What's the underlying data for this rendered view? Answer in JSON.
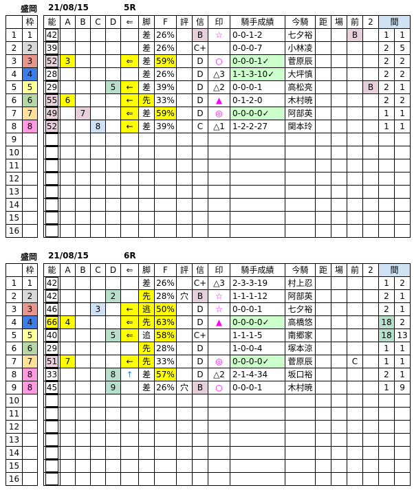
{
  "headers": [
    "",
    "枠",
    "能",
    "A",
    "B",
    "C",
    "D",
    "⇐",
    "脚",
    "F",
    "評",
    "信",
    "印",
    "騎手成績",
    "今騎",
    "距",
    "場",
    "前",
    "2",
    "間"
  ],
  "races": [
    {
      "venue": "盛岡",
      "date": "21/08/15",
      "race": "5R",
      "rows": [
        [
          [
            "1"
          ],
          [
            "1",
            "#ffffff"
          ],
          [
            "42"
          ],
          [
            ""
          ],
          [
            ""
          ],
          [
            ""
          ],
          [
            ""
          ],
          [
            ""
          ],
          [
            "差"
          ],
          [
            "26%"
          ],
          [
            ""
          ],
          [
            "B",
            "#e6d0dc"
          ],
          [
            "☆",
            "",
            "#ff00ff"
          ],
          [
            "0-0-1-2"
          ],
          [
            "七夕裕"
          ],
          [
            ""
          ],
          [
            ""
          ],
          [
            "B",
            "#e6d0dc"
          ],
          [
            ""
          ],
          [
            "1"
          ],
          [
            "1"
          ]
        ],
        [
          [
            "2"
          ],
          [
            "2",
            "#d9d9d9"
          ],
          [
            "39"
          ],
          [
            ""
          ],
          [
            ""
          ],
          [
            ""
          ],
          [
            ""
          ],
          [
            ""
          ],
          [
            "差"
          ],
          [
            "26%"
          ],
          [
            ""
          ],
          [
            "C+"
          ],
          [
            ""
          ],
          [
            "0-0-0-7"
          ],
          [
            "小林凌"
          ],
          [
            ""
          ],
          [
            ""
          ],
          [
            ""
          ],
          [
            ""
          ],
          [
            "2"
          ],
          [
            "5"
          ]
        ],
        [
          [
            "3"
          ],
          [
            "3",
            "#e6958f"
          ],
          [
            "52",
            "#e6d0dc"
          ],
          [
            "3",
            "#ffff00"
          ],
          [
            ""
          ],
          [
            ""
          ],
          [
            ""
          ],
          [
            "⇐",
            "#ffff00"
          ],
          [
            "差"
          ],
          [
            "59%",
            "#ffff00"
          ],
          [
            ""
          ],
          [
            "D"
          ],
          [
            "○",
            "",
            "#ff00ff"
          ],
          [
            "0-0-0-1✓",
            "#ccffcc"
          ],
          [
            "菅原辰"
          ],
          [
            ""
          ],
          [
            ""
          ],
          [
            ""
          ],
          [
            ""
          ],
          [
            "2"
          ],
          [
            "2"
          ]
        ],
        [
          [
            "4"
          ],
          [
            "4",
            "#3c7de6"
          ],
          [
            "28"
          ],
          [
            ""
          ],
          [
            ""
          ],
          [
            ""
          ],
          [
            ""
          ],
          [
            ""
          ],
          [
            "差"
          ],
          [
            "26%"
          ],
          [
            ""
          ],
          [
            "D"
          ],
          [
            "△3"
          ],
          [
            "1-1-3-10✓",
            "#ccffcc"
          ],
          [
            "大坪慎"
          ],
          [
            ""
          ],
          [
            ""
          ],
          [
            ""
          ],
          [
            ""
          ],
          [
            "2"
          ],
          [
            "2"
          ]
        ],
        [
          [
            "5"
          ],
          [
            "5",
            "#ffff99"
          ],
          [
            "29"
          ],
          [
            ""
          ],
          [
            ""
          ],
          [
            ""
          ],
          [
            "5",
            "#b7dfcc"
          ],
          [
            "←",
            "#ffff00"
          ],
          [
            "差"
          ],
          [
            "39%"
          ],
          [
            ""
          ],
          [
            "D"
          ],
          [
            "△2"
          ],
          [
            "0-0-0-1"
          ],
          [
            "高松亮"
          ],
          [
            ""
          ],
          [
            ""
          ],
          [
            ""
          ],
          [
            "B",
            "#e6d0dc"
          ],
          [
            "2"
          ],
          [
            "1"
          ]
        ],
        [
          [
            "6"
          ],
          [
            "6",
            "#b6d7a8"
          ],
          [
            "55",
            "#e6d0dc"
          ],
          [
            "6",
            "#ffff00"
          ],
          [
            ""
          ],
          [
            ""
          ],
          [
            ""
          ],
          [
            "←",
            "#ffff00"
          ],
          [
            "先",
            "#ffff00"
          ],
          [
            "33%"
          ],
          [
            ""
          ],
          [
            "D"
          ],
          [
            "▲",
            "",
            "#ff00ff"
          ],
          [
            "0-1-2-0"
          ],
          [
            "木村暁"
          ],
          [
            ""
          ],
          [
            ""
          ],
          [
            ""
          ],
          [
            ""
          ],
          [
            "2"
          ],
          [
            "2"
          ]
        ],
        [
          [
            "7"
          ],
          [
            "7",
            "#ffe199"
          ],
          [
            "49",
            "#e6d0dc"
          ],
          [
            ""
          ],
          [
            "7",
            "#e6d0dc"
          ],
          [
            ""
          ],
          [
            ""
          ],
          [
            "⇐",
            "#ffff00"
          ],
          [
            "差"
          ],
          [
            "59%",
            "#ffff00"
          ],
          [
            ""
          ],
          [
            "D"
          ],
          [
            "◎",
            "",
            "#ff00ff"
          ],
          [
            "0-0-0-0✓",
            "#ccffcc"
          ],
          [
            "阿部英"
          ],
          [
            ""
          ],
          [
            ""
          ],
          [
            ""
          ],
          [
            ""
          ],
          [
            "1"
          ],
          [
            "1"
          ]
        ],
        [
          [
            "8"
          ],
          [
            "8",
            "#ff99e0"
          ],
          [
            "52",
            "#e6d0dc"
          ],
          [
            ""
          ],
          [
            ""
          ],
          [
            "8",
            "#cfe2f3"
          ],
          [
            ""
          ],
          [
            "←",
            "#ffff00"
          ],
          [
            "差"
          ],
          [
            "39%"
          ],
          [
            ""
          ],
          [
            "C"
          ],
          [
            "△1"
          ],
          [
            "1-2-2-27"
          ],
          [
            "関本玲"
          ],
          [
            ""
          ],
          [
            ""
          ],
          [
            ""
          ],
          [
            ""
          ],
          [
            "1"
          ],
          [
            "1"
          ]
        ],
        [
          [
            "9"
          ]
        ],
        [
          [
            "10"
          ]
        ],
        [
          [
            "11"
          ]
        ],
        [
          [
            "12"
          ]
        ],
        [
          [
            "13"
          ]
        ],
        [
          [
            "14"
          ]
        ],
        [
          [
            "15"
          ]
        ],
        [
          [
            "16"
          ]
        ]
      ]
    },
    {
      "venue": "盛岡",
      "date": "21/08/15",
      "race": "6R",
      "rows": [
        [
          [
            "1"
          ],
          [
            "1",
            "#ffffff"
          ],
          [
            "42"
          ],
          [
            ""
          ],
          [
            ""
          ],
          [
            ""
          ],
          [
            ""
          ],
          [
            ""
          ],
          [
            "差"
          ],
          [
            "26%"
          ],
          [
            ""
          ],
          [
            "C+"
          ],
          [
            "△3"
          ],
          [
            "2-3-3-19"
          ],
          [
            "村上忍"
          ],
          [
            ""
          ],
          [
            ""
          ],
          [
            ""
          ],
          [
            ""
          ],
          [
            "1"
          ],
          [
            "2"
          ]
        ],
        [
          [
            "2"
          ],
          [
            "2",
            "#d9d9d9"
          ],
          [
            "42"
          ],
          [
            ""
          ],
          [
            ""
          ],
          [
            ""
          ],
          [
            "2",
            "#b7dfcc"
          ],
          [
            ""
          ],
          [
            "先",
            "#ffff00"
          ],
          [
            "28%"
          ],
          [
            "穴"
          ],
          [
            "B",
            "#e6d0dc"
          ],
          [
            "☆",
            "",
            "#ff00ff"
          ],
          [
            "1-1-1-12"
          ],
          [
            "阿部英"
          ],
          [
            ""
          ],
          [
            ""
          ],
          [
            ""
          ],
          [
            ""
          ],
          [
            "2"
          ],
          [
            "1"
          ]
        ],
        [
          [
            "3"
          ],
          [
            "3",
            "#e6958f"
          ],
          [
            "46"
          ],
          [
            ""
          ],
          [
            ""
          ],
          [
            "3",
            "#cfe2f3"
          ],
          [
            ""
          ],
          [
            "←",
            "#ffff00"
          ],
          [
            "逃",
            "#ffff00"
          ],
          [
            "50%",
            "#ffff00"
          ],
          [
            ""
          ],
          [
            "D"
          ],
          [
            "☆",
            "",
            "#ff00ff"
          ],
          [
            "0-0-0-1"
          ],
          [
            "七夕裕"
          ],
          [
            ""
          ],
          [
            ""
          ],
          [
            ""
          ],
          [
            ""
          ],
          [
            "2"
          ],
          [
            "1"
          ]
        ],
        [
          [
            "4"
          ],
          [
            "4",
            "#3c7de6"
          ],
          [
            "66",
            "#ffff00"
          ],
          [
            "4",
            "#ffff00"
          ],
          [
            ""
          ],
          [
            ""
          ],
          [
            ""
          ],
          [
            "⇐",
            "#ffff00"
          ],
          [
            "先",
            "#ffff00"
          ],
          [
            "63%",
            "#ffff00"
          ],
          [
            ""
          ],
          [
            "D"
          ],
          [
            "▲",
            "",
            "#ff00ff"
          ],
          [
            "0-0-0-0✓",
            "#ccffcc"
          ],
          [
            "高橋悠"
          ],
          [
            ""
          ],
          [
            ""
          ],
          [
            ""
          ],
          [
            ""
          ],
          [
            "18",
            "#b7dfcc"
          ],
          [
            "2"
          ]
        ],
        [
          [
            "5"
          ],
          [
            "5",
            "#ffff99"
          ],
          [
            "40"
          ],
          [
            ""
          ],
          [
            ""
          ],
          [
            ""
          ],
          [
            "5",
            "#b7dfcc"
          ],
          [
            "⇐",
            "#ffff00"
          ],
          [
            "追"
          ],
          [
            "58%",
            "#ffff00"
          ],
          [
            ""
          ],
          [
            "C+"
          ],
          [
            ""
          ],
          [
            "1-1-1-5"
          ],
          [
            "南郷家"
          ],
          [
            ""
          ],
          [
            ""
          ],
          [
            ""
          ],
          [
            ""
          ],
          [
            "18",
            "#b7dfcc"
          ],
          [
            "13"
          ]
        ],
        [
          [
            "6"
          ],
          [
            "6",
            "#b6d7a8"
          ],
          [
            "29"
          ],
          [
            ""
          ],
          [
            ""
          ],
          [
            ""
          ],
          [
            ""
          ],
          [
            ""
          ],
          [
            "先",
            "#ffff00"
          ],
          [
            "28%"
          ],
          [
            ""
          ],
          [
            "D"
          ],
          [
            ""
          ],
          [
            "1-0-0-4"
          ],
          [
            "塚本涼"
          ],
          [
            ""
          ],
          [
            ""
          ],
          [
            ""
          ],
          [
            ""
          ],
          [
            "1"
          ],
          [
            "1"
          ]
        ],
        [
          [
            "7"
          ],
          [
            "7",
            "#ffe199"
          ],
          [
            "51",
            "#e6d0dc"
          ],
          [
            "7",
            "#ffff00"
          ],
          [
            ""
          ],
          [
            ""
          ],
          [
            ""
          ],
          [
            "←",
            "#ffff00"
          ],
          [
            "先",
            "#ffff00"
          ],
          [
            "33%"
          ],
          [
            ""
          ],
          [
            "D"
          ],
          [
            "◎",
            "",
            "#ff00ff"
          ],
          [
            "0-0-0-0✓",
            "#ccffcc"
          ],
          [
            "菅原辰"
          ],
          [
            ""
          ],
          [
            ""
          ],
          [
            "C"
          ],
          [
            ""
          ],
          [
            "1"
          ],
          [
            "1"
          ]
        ],
        [
          [
            "8"
          ],
          [
            "8",
            "#ff99e0"
          ],
          [
            "33"
          ],
          [
            ""
          ],
          [
            ""
          ],
          [
            ""
          ],
          [
            "8",
            "#b7dfcc"
          ],
          [
            "↑",
            "",
            "#3d85c6"
          ],
          [
            "差"
          ],
          [
            "57%",
            "#ffff00"
          ],
          [
            ""
          ],
          [
            "D"
          ],
          [
            "△2"
          ],
          [
            "2-1-4-34"
          ],
          [
            "坂口裕"
          ],
          [
            ""
          ],
          [
            ""
          ],
          [
            ""
          ],
          [
            ""
          ],
          [
            "2"
          ],
          [
            "1"
          ]
        ],
        [
          [
            "9"
          ],
          [
            "8",
            "#ff99e0"
          ],
          [
            "45"
          ],
          [
            ""
          ],
          [
            ""
          ],
          [
            ""
          ],
          [
            "9",
            "#b7dfcc"
          ],
          [
            ""
          ],
          [
            "差"
          ],
          [
            "26%"
          ],
          [
            "穴"
          ],
          [
            "B",
            "#e6d0dc"
          ],
          [
            "○",
            "",
            "#ff00ff"
          ],
          [
            "0-0-0-1"
          ],
          [
            "木村暁"
          ],
          [
            ""
          ],
          [
            ""
          ],
          [
            ""
          ],
          [
            ""
          ],
          [
            "1"
          ],
          [
            "9"
          ]
        ],
        [
          [
            "10"
          ]
        ],
        [
          [
            "11"
          ]
        ],
        [
          [
            "12"
          ]
        ],
        [
          [
            "13"
          ]
        ],
        [
          [
            "14"
          ]
        ],
        [
          [
            "15"
          ]
        ],
        [
          [
            "16"
          ]
        ]
      ]
    }
  ]
}
